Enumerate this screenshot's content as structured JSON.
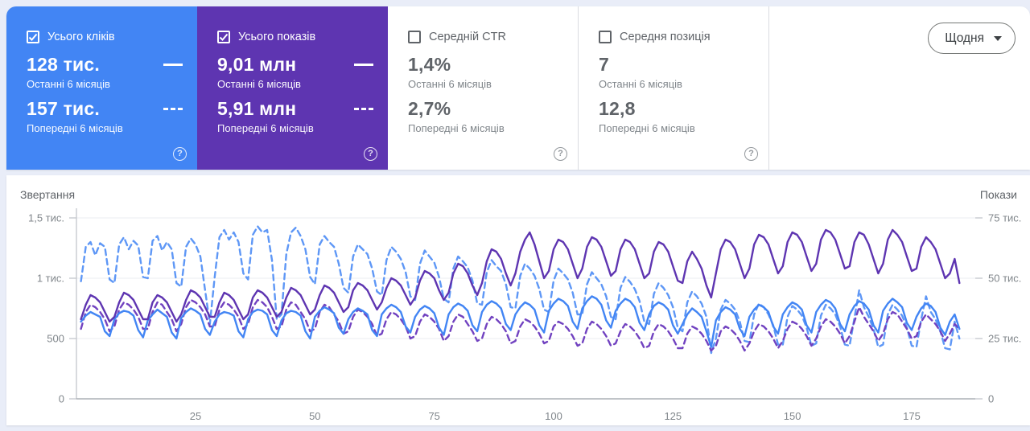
{
  "cards": [
    {
      "label": "Усього кліків",
      "checked": true,
      "bg": "#4285f4",
      "value_current": "128 тис.",
      "period_current": "Останні 6 місяців",
      "value_previous": "157 тис.",
      "period_previous": "Попередні 6 місяців"
    },
    {
      "label": "Усього показів",
      "checked": true,
      "bg": "#5e35b1",
      "value_current": "9,01 млн",
      "period_current": "Останні 6 місяців",
      "value_previous": "5,91 млн",
      "period_previous": "Попередні 6 місяців"
    },
    {
      "label": "Середній CTR",
      "checked": false,
      "bg": "#ffffff",
      "value_current": "1,4%",
      "period_current": "Останні 6 місяців",
      "value_previous": "2,7%",
      "period_previous": "Попередні 6 місяців"
    },
    {
      "label": "Середня позиція",
      "checked": false,
      "bg": "#ffffff",
      "value_current": "7",
      "period_current": "Останні 6 місяців",
      "value_previous": "12,8",
      "period_previous": "Попередні 6 місяців"
    }
  ],
  "granularity_button": {
    "label": "Щодня"
  },
  "chart_data": {
    "type": "line",
    "left_axis": {
      "title": "Звертання",
      "max": 1500,
      "ticks": [
        "1,5 тис.",
        "1 тис.",
        "500",
        "0"
      ]
    },
    "right_axis": {
      "title": "Покази",
      "max": 75000,
      "ticks": [
        "75 тис.",
        "50 тис.",
        "25 тис.",
        "0"
      ]
    },
    "x_ticks": [
      25,
      50,
      75,
      100,
      125,
      150,
      175
    ],
    "grid": true,
    "series": [
      {
        "name": "clicks-previous-6-months",
        "axis": "left",
        "style": "dashed",
        "color": "#5e97f6",
        "scale": 1,
        "values": [
          975,
          1260,
          1300,
          1190,
          1290,
          1260,
          990,
          960,
          1280,
          1340,
          1240,
          1310,
          1270,
          1010,
          1000,
          1310,
          1350,
          1230,
          1300,
          1240,
          960,
          930,
          1260,
          1330,
          1280,
          1180,
          900,
          620,
          1010,
          1340,
          1400,
          1320,
          1380,
          1300,
          1040,
          990,
          1360,
          1430,
          1380,
          1400,
          1150,
          660,
          700,
          1200,
          1380,
          1420,
          1350,
          1240,
          1010,
          950,
          1280,
          1350,
          1300,
          1260,
          1120,
          920,
          880,
          1180,
          1280,
          1240,
          1200,
          1080,
          890,
          860,
          1150,
          1260,
          1220,
          1160,
          1050,
          850,
          820,
          1120,
          1230,
          1180,
          1130,
          1010,
          830,
          800,
          1080,
          1180,
          1140,
          1090,
          980,
          790,
          780,
          1050,
          1150,
          1100,
          1060,
          950,
          760,
          750,
          1020,
          1120,
          1080,
          1020,
          910,
          740,
          720,
          980,
          1080,
          1040,
          990,
          880,
          700,
          700,
          950,
          1050,
          1000,
          950,
          850,
          680,
          660,
          920,
          1010,
          970,
          910,
          810,
          640,
          620,
          870,
          960,
          920,
          860,
          760,
          590,
          560,
          800,
          890,
          850,
          790,
          680,
          380,
          500,
          740,
          820,
          790,
          740,
          640,
          480,
          470,
          700,
          790,
          760,
          700,
          610,
          450,
          450,
          680,
          770,
          740,
          690,
          590,
          440,
          460,
          690,
          780,
          750,
          700,
          600,
          450,
          440,
          670,
          900,
          760,
          680,
          580,
          430,
          450,
          700,
          780,
          740,
          690,
          590,
          440,
          430,
          660,
          850,
          720,
          660,
          560,
          420,
          410,
          640,
          500
        ]
      },
      {
        "name": "impressions-previous-6-months",
        "axis": "right",
        "style": "dashed",
        "color": "#7142c0",
        "scale": 1000,
        "values": [
          29,
          36,
          39,
          38,
          36,
          33,
          28,
          30,
          37,
          40,
          39,
          37,
          34,
          29,
          29,
          36,
          40,
          39,
          36,
          33,
          28,
          31,
          38,
          41,
          40,
          38,
          35,
          30,
          30,
          37,
          40,
          39,
          37,
          34,
          29,
          31,
          38,
          41,
          40,
          38,
          34,
          29,
          30,
          37,
          40,
          39,
          36,
          33,
          28,
          29,
          36,
          39,
          38,
          35,
          32,
          27,
          28,
          34,
          37,
          36,
          34,
          31,
          26,
          27,
          33,
          36,
          35,
          33,
          30,
          25,
          26,
          32,
          35,
          34,
          32,
          29,
          24,
          26,
          32,
          35,
          34,
          31,
          28,
          24,
          25,
          31,
          34,
          33,
          31,
          28,
          23,
          24,
          30,
          33,
          32,
          30,
          27,
          23,
          24,
          30,
          32,
          31,
          29,
          26,
          22,
          23,
          29,
          32,
          31,
          29,
          26,
          22,
          23,
          28,
          31,
          30,
          28,
          25,
          21,
          22,
          28,
          31,
          30,
          28,
          25,
          21,
          21,
          27,
          30,
          29,
          27,
          24,
          20,
          22,
          28,
          30,
          29,
          27,
          24,
          20,
          23,
          28,
          31,
          30,
          28,
          25,
          21,
          24,
          29,
          32,
          31,
          29,
          26,
          22,
          25,
          30,
          33,
          32,
          30,
          27,
          23,
          26,
          32,
          38,
          34,
          31,
          28,
          24,
          27,
          33,
          36,
          35,
          32,
          29,
          25,
          26,
          32,
          35,
          33,
          31,
          28,
          24,
          27,
          31,
          29
        ]
      },
      {
        "name": "clicks-last-6-months",
        "axis": "left",
        "style": "solid",
        "color": "#4285f4",
        "scale": 1,
        "values": [
          640,
          690,
          720,
          700,
          680,
          560,
          520,
          660,
          710,
          730,
          720,
          690,
          570,
          510,
          650,
          700,
          740,
          710,
          680,
          550,
          500,
          670,
          720,
          750,
          730,
          700,
          580,
          530,
          640,
          700,
          720,
          710,
          690,
          560,
          510,
          660,
          720,
          740,
          730,
          700,
          570,
          520,
          650,
          710,
          730,
          720,
          690,
          560,
          500,
          680,
          730,
          760,
          740,
          710,
          590,
          540,
          660,
          720,
          750,
          730,
          700,
          570,
          520,
          700,
          750,
          780,
          760,
          720,
          600,
          550,
          680,
          740,
          770,
          750,
          710,
          590,
          530,
          700,
          760,
          790,
          770,
          730,
          610,
          560,
          720,
          780,
          810,
          790,
          750,
          620,
          570,
          700,
          760,
          800,
          780,
          740,
          610,
          550,
          730,
          790,
          830,
          810,
          770,
          640,
          580,
          750,
          810,
          850,
          830,
          780,
          650,
          590,
          730,
          790,
          830,
          810,
          760,
          630,
          570,
          700,
          770,
          800,
          780,
          740,
          610,
          540,
          620,
          700,
          750,
          720,
          680,
          560,
          430,
          650,
          720,
          760,
          740,
          700,
          580,
          520,
          680,
          740,
          780,
          760,
          720,
          600,
          540,
          700,
          760,
          800,
          780,
          740,
          610,
          550,
          720,
          780,
          820,
          800,
          750,
          620,
          560,
          700,
          770,
          810,
          790,
          740,
          610,
          550,
          730,
          790,
          830,
          800,
          760,
          630,
          570,
          680,
          750,
          790,
          770,
          720,
          590,
          530,
          640,
          700,
          580
        ]
      },
      {
        "name": "impressions-last-6-months",
        "axis": "right",
        "style": "solid",
        "color": "#5e35b1",
        "scale": 1000,
        "values": [
          33,
          39,
          43,
          42,
          40,
          36,
          32,
          34,
          40,
          44,
          43,
          41,
          37,
          33,
          33,
          40,
          43,
          42,
          40,
          36,
          32,
          35,
          41,
          45,
          44,
          42,
          38,
          34,
          34,
          40,
          44,
          43,
          41,
          37,
          33,
          35,
          42,
          45,
          44,
          42,
          38,
          34,
          36,
          42,
          46,
          45,
          43,
          39,
          35,
          37,
          43,
          47,
          46,
          44,
          40,
          36,
          38,
          45,
          48,
          47,
          45,
          41,
          37,
          40,
          46,
          50,
          49,
          47,
          43,
          39,
          42,
          49,
          53,
          52,
          50,
          45,
          41,
          44,
          52,
          56,
          55,
          52,
          47,
          43,
          48,
          57,
          62,
          61,
          58,
          52,
          47,
          52,
          61,
          66,
          69,
          64,
          57,
          50,
          53,
          62,
          66,
          65,
          62,
          56,
          50,
          54,
          63,
          67,
          66,
          63,
          57,
          51,
          53,
          62,
          66,
          65,
          62,
          56,
          50,
          52,
          61,
          65,
          64,
          61,
          55,
          49,
          48,
          57,
          61,
          58,
          54,
          47,
          42,
          52,
          62,
          66,
          65,
          62,
          56,
          50,
          54,
          64,
          68,
          67,
          64,
          58,
          52,
          55,
          65,
          69,
          68,
          65,
          59,
          53,
          56,
          66,
          70,
          69,
          66,
          60,
          54,
          55,
          65,
          69,
          68,
          64,
          58,
          52,
          56,
          66,
          70,
          68,
          65,
          59,
          53,
          54,
          63,
          67,
          65,
          62,
          56,
          50,
          52,
          58,
          48
        ]
      }
    ]
  }
}
